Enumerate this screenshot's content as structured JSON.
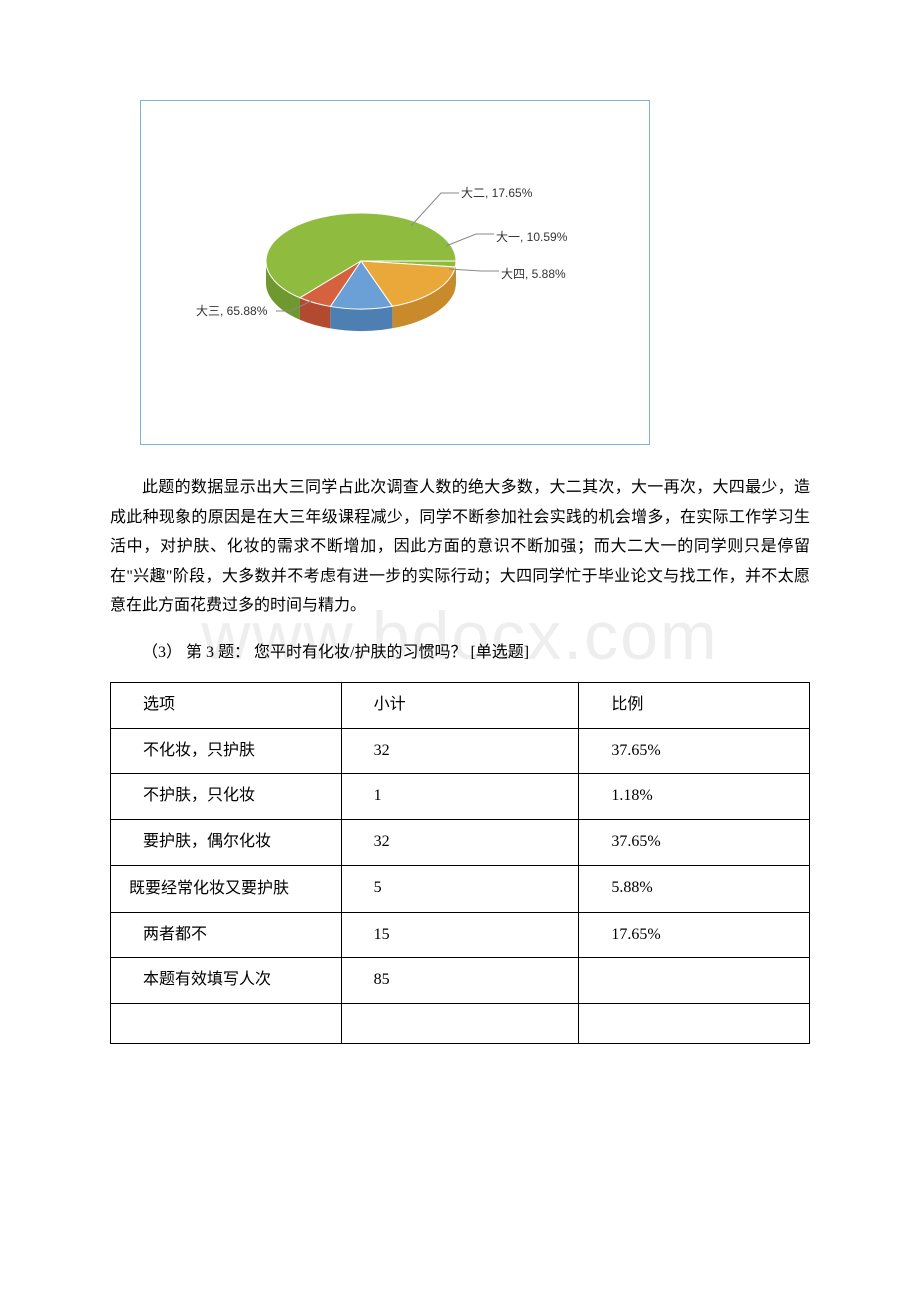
{
  "watermark": "www.bdocx.com",
  "pie_chart": {
    "type": "pie",
    "slices": [
      {
        "label": "大三",
        "value": 65.88,
        "display": "大三, 65.88%",
        "color": "#8fbc3f",
        "side_dark": "#6f9830"
      },
      {
        "label": "大二",
        "value": 17.65,
        "display": "大二, 17.65%",
        "color": "#eaa83a",
        "side_dark": "#c88a2a"
      },
      {
        "label": "大一",
        "value": 10.59,
        "display": "大一, 10.59%",
        "color": "#6aa0d6",
        "side_dark": "#4e7fb2"
      },
      {
        "label": "大四",
        "value": 5.88,
        "display": "大四, 5.88%",
        "color": "#d6613f",
        "side_dark": "#b24a30"
      }
    ],
    "border_color": "#7fb0d8",
    "background_color": "#ffffff",
    "label_fontsize": 12
  },
  "paragraph": "此题的数据显示出大三同学占此次调查人数的绝大多数，大二其次，大一再次，大四最少，造成此种现象的原因是在大三年级课程减少，同学不断参加社会实践的机会增多，在实际工作学习生活中，对护肤、化妆的需求不断增加，因此方面的意识不断加强；而大二大一的同学则只是停留在\"兴趣\"阶段，大多数并不考虑有进一步的实际行动；大四同学忙于毕业论文与找工作，并不太愿意在此方面花费过多的时间与精力。",
  "question_title": "（3）  第 3 题：  您平时有化妆/护肤的习惯吗？   [单选题]",
  "table": {
    "columns": [
      "选项",
      "小计",
      "比例"
    ],
    "rows": [
      [
        "不化妆，只护肤",
        "32",
        "37.65%"
      ],
      [
        "不护肤，只化妆",
        "1",
        "1.18%"
      ],
      [
        "要护肤，偶尔化妆",
        "32",
        "37.65%"
      ],
      [
        "既要经常化妆又要护肤",
        "5",
        "5.88%"
      ],
      [
        "两者都不",
        "15",
        "17.65%"
      ],
      [
        "本题有效填写人次",
        "85",
        ""
      ]
    ]
  }
}
